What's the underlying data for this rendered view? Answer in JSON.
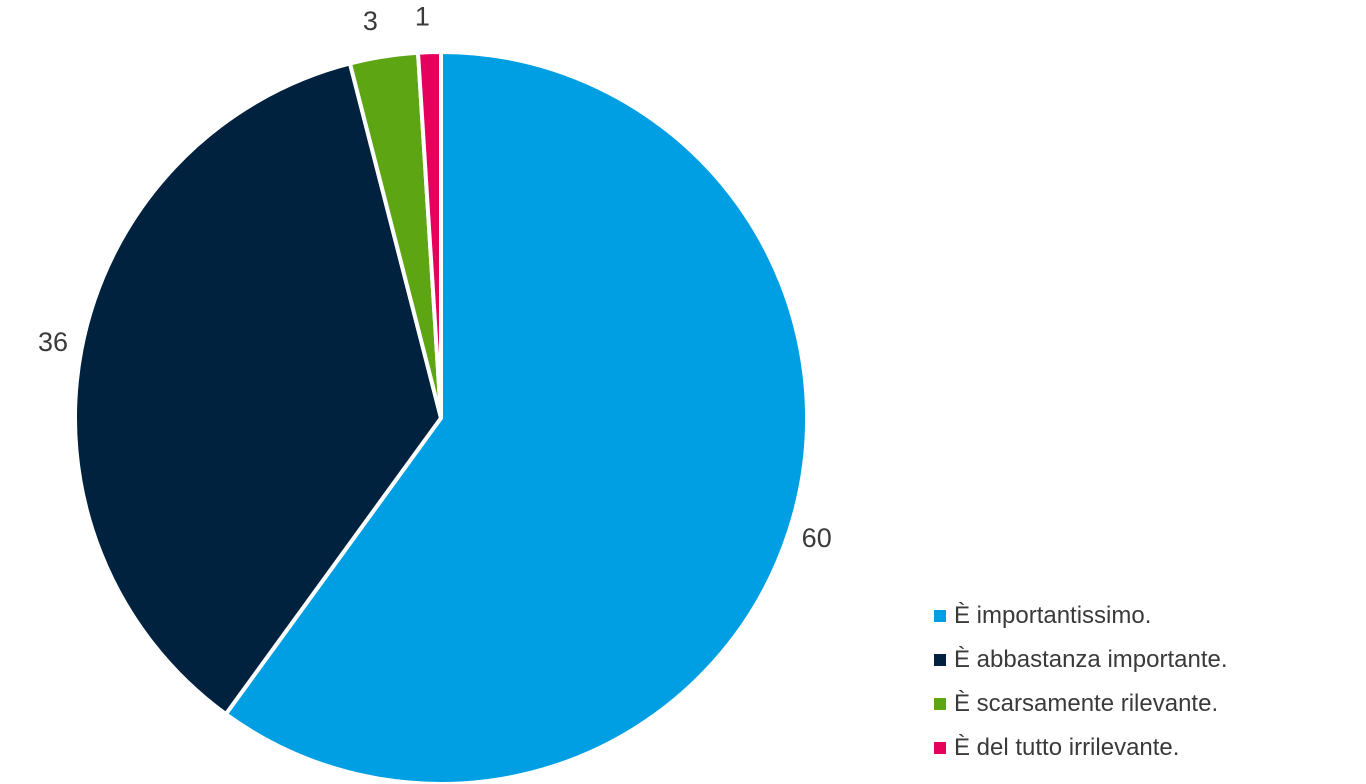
{
  "chart_data": {
    "type": "pie",
    "title": "",
    "categories": [
      "È importantissimo.",
      "È abbastanza importante.",
      "È scarsamente rilevante.",
      "È del tutto irrilevante."
    ],
    "values": [
      60,
      36,
      3,
      1
    ],
    "data_labels": [
      "60",
      "36",
      "3",
      "1"
    ],
    "colors": [
      "#009fe3",
      "#00223f",
      "#5ea514",
      "#e5005b"
    ],
    "legend_position": "bottom-right"
  }
}
